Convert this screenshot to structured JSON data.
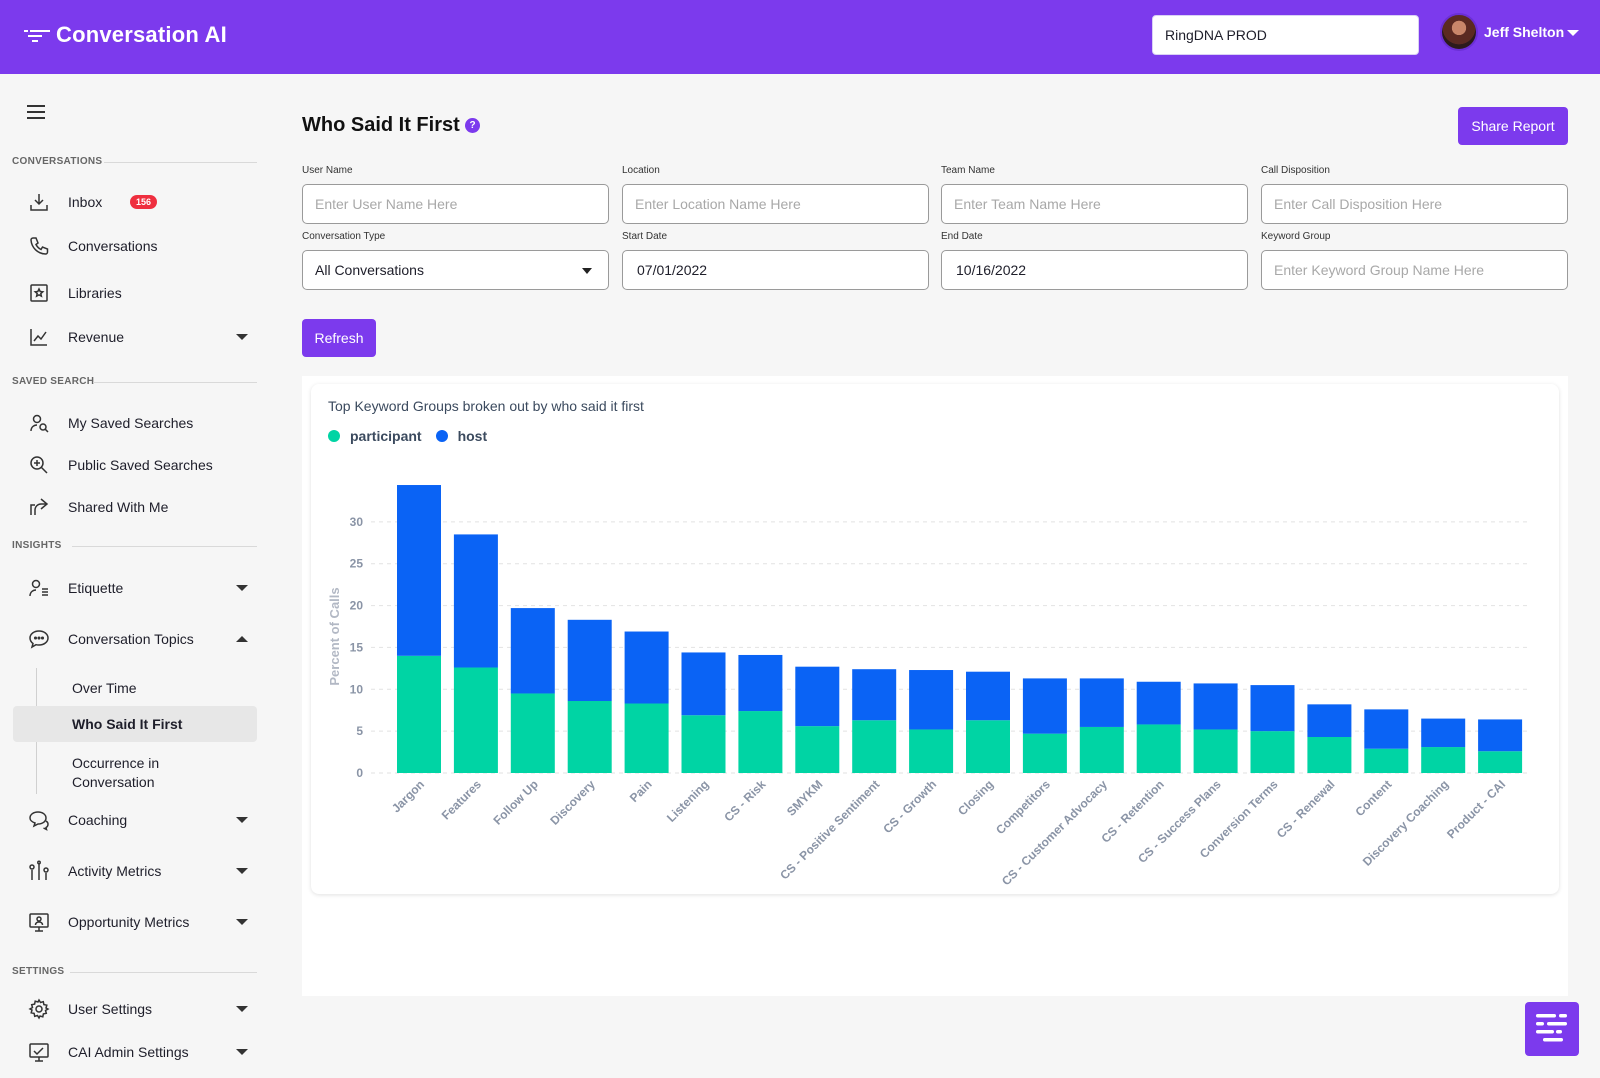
{
  "header": {
    "app_name": "Conversation AI",
    "org_selector": "RingDNA PROD",
    "user_name": "Jeff Shelton"
  },
  "sidebar": {
    "sections": {
      "conversations": "CONVERSATIONS",
      "saved_search": "SAVED SEARCH",
      "insights": "INSIGHTS",
      "settings": "SETTINGS"
    },
    "items": {
      "inbox": "Inbox",
      "inbox_badge": "156",
      "conversations": "Conversations",
      "libraries": "Libraries",
      "revenue": "Revenue",
      "my_saved_searches": "My Saved Searches",
      "public_saved_searches": "Public Saved Searches",
      "shared_with_me": "Shared With Me",
      "etiquette": "Etiquette",
      "conversation_topics": "Conversation Topics",
      "over_time": "Over Time",
      "who_said_it_first": "Who Said It First",
      "occurrence_line1": "Occurrence in",
      "occurrence_line2": "Conversation",
      "coaching": "Coaching",
      "activity_metrics": "Activity Metrics",
      "opportunity_metrics": "Opportunity Metrics",
      "user_settings": "User Settings",
      "cai_admin_settings": "CAI Admin Settings"
    }
  },
  "page": {
    "title": "Who Said It First",
    "help": "?",
    "share_button": "Share Report",
    "refresh_button": "Refresh"
  },
  "filters": {
    "user_name": {
      "label": "User Name",
      "placeholder": "Enter User Name Here"
    },
    "location": {
      "label": "Location",
      "placeholder": "Enter Location Name Here"
    },
    "team_name": {
      "label": "Team Name",
      "placeholder": "Enter Team Name Here"
    },
    "call_disposition": {
      "label": "Call Disposition",
      "placeholder": "Enter Call Disposition Here"
    },
    "conversation_type": {
      "label": "Conversation Type",
      "value": "All Conversations"
    },
    "start_date": {
      "label": "Start Date",
      "value": "07/01/2022"
    },
    "end_date": {
      "label": "End Date",
      "value": "10/16/2022"
    },
    "keyword_group": {
      "label": "Keyword Group",
      "placeholder": "Enter Keyword Group Name Here"
    }
  },
  "colors": {
    "accent": "#7c3aed",
    "participant": "#00d4a4",
    "host": "#0a63f5"
  },
  "chart_data": {
    "type": "bar",
    "stacked": true,
    "title": "Top Keyword Groups broken out by who said it first",
    "xlabel": "",
    "ylabel": "Percent of Calls",
    "ylim": [
      0,
      35
    ],
    "yticks": [
      0,
      5,
      10,
      15,
      20,
      25,
      30
    ],
    "grid": true,
    "legend": "top-left",
    "categories": [
      "Jargon",
      "Features",
      "Follow Up",
      "Discovery",
      "Pain",
      "Listening",
      "CS - Risk",
      "SMYKM",
      "CS - Positive Sentiment",
      "CS - Growth",
      "Closing",
      "Competitors",
      "CS - Customer Advocacy",
      "CS - Retention",
      "CS - Success Plans",
      "Conversion Terms",
      "CS - Renewal",
      "Content",
      "Discovery Coaching",
      "Product - CAI"
    ],
    "series": [
      {
        "name": "participant",
        "values": [
          14.0,
          12.6,
          9.5,
          8.6,
          8.3,
          6.9,
          7.4,
          5.6,
          6.3,
          5.2,
          6.3,
          4.7,
          5.5,
          5.8,
          5.2,
          5.0,
          4.3,
          2.9,
          3.1,
          2.6
        ]
      },
      {
        "name": "host",
        "values": [
          20.4,
          15.9,
          10.2,
          9.7,
          8.6,
          7.5,
          6.7,
          7.1,
          6.1,
          7.1,
          5.8,
          6.6,
          5.8,
          5.1,
          5.5,
          5.5,
          3.9,
          4.7,
          3.4,
          3.8
        ]
      }
    ]
  }
}
